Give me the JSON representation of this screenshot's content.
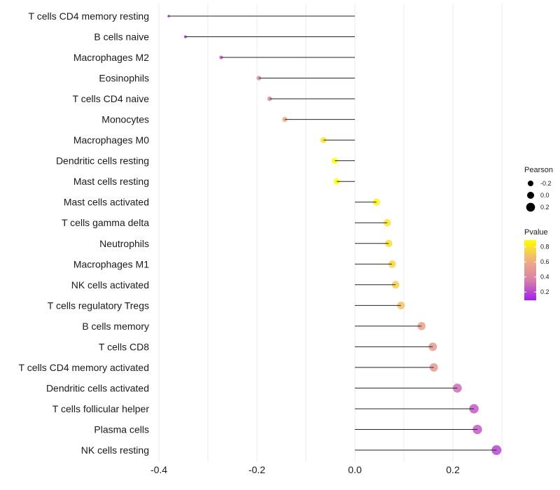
{
  "chart_data": {
    "type": "lollipop",
    "title": "",
    "xlabel": "",
    "ylabel": "",
    "xlim": [
      -0.42,
      0.31
    ],
    "x_ticks": [
      -0.4,
      -0.2,
      0.0,
      0.2
    ],
    "x_tick_labels": [
      "-0.4",
      "-0.2",
      "0.0",
      "0.2"
    ],
    "grid": true,
    "categories": [
      "T cells CD4 memory resting",
      "B cells naive",
      "Macrophages M2",
      "Eosinophils",
      "T cells CD4 naive",
      "Monocytes",
      "Macrophages M0",
      "Dendritic cells resting",
      "Mast cells resting",
      "Mast cells activated",
      "T cells gamma delta",
      "Neutrophils",
      "Macrophages M1",
      "NK cells activated",
      "T cells regulatory  Tregs",
      "B cells memory",
      "T cells CD8",
      "T cells CD4 memory activated",
      "Dendritic cells activated",
      "T cells follicular helper",
      "Plasma cells",
      "NK cells resting"
    ],
    "values": [
      -0.38,
      -0.346,
      -0.273,
      -0.196,
      -0.174,
      -0.143,
      -0.064,
      -0.041,
      -0.037,
      0.044,
      0.066,
      0.069,
      0.076,
      0.083,
      0.094,
      0.136,
      0.159,
      0.161,
      0.209,
      0.243,
      0.25,
      0.289
    ],
    "pvalues": [
      0.1,
      0.12,
      0.25,
      0.42,
      0.45,
      0.58,
      0.8,
      0.89,
      0.89,
      0.85,
      0.8,
      0.79,
      0.76,
      0.72,
      0.68,
      0.55,
      0.5,
      0.5,
      0.3,
      0.25,
      0.25,
      0.2
    ],
    "legend": {
      "placement": "right",
      "size_title": "Pearson",
      "size_breaks": [
        -0.2,
        0.0,
        0.2
      ],
      "size_labels": [
        "-0.2",
        "0.0",
        "0.2"
      ],
      "color_title": "Pvalue",
      "color_range": [
        0.09,
        0.89
      ],
      "color_breaks": [
        0.2,
        0.4,
        0.6,
        0.8
      ],
      "color_labels": [
        "0.2",
        "0.4",
        "0.6",
        "0.8"
      ],
      "colors": [
        "#a020f0",
        "#d880a8",
        "#f0b080",
        "#ffff00"
      ]
    }
  }
}
